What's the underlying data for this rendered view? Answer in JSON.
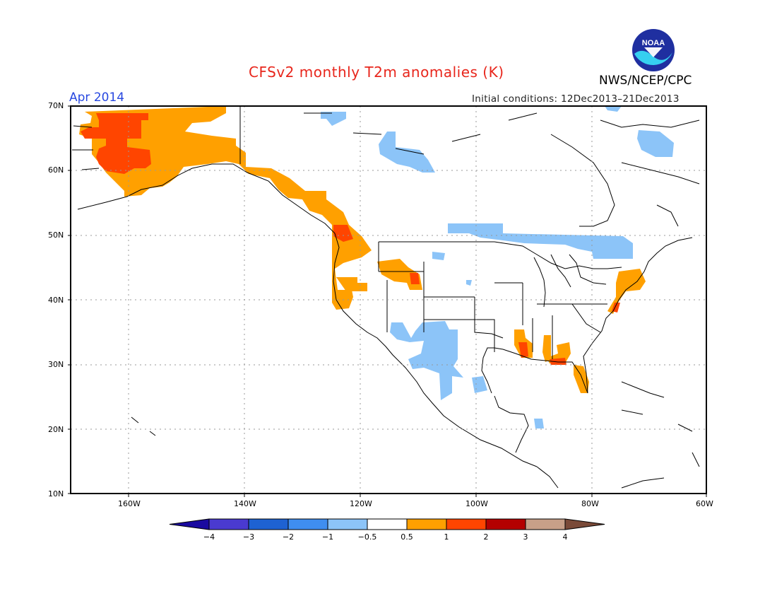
{
  "header": {
    "title": "CFSv2 monthly T2m anomalies (K)",
    "month": "Apr 2014",
    "initial_conditions": "Initial conditions: 12Dec2013–21Dec2013",
    "agency": "NWS/NCEP/CPC",
    "logo_text": "NOAA"
  },
  "axes": {
    "lat_labels": [
      "70N",
      "60N",
      "50N",
      "40N",
      "30N",
      "20N",
      "10N"
    ],
    "lon_labels": [
      "160W",
      "140W",
      "120W",
      "100W",
      "80W",
      "60W"
    ]
  },
  "colorbar": {
    "labels": [
      "−4",
      "−3",
      "−2",
      "−1",
      "−0.5",
      "0.5",
      "1",
      "2",
      "3",
      "4"
    ],
    "colors": [
      "#1a0aa0",
      "#4a3ad0",
      "#1e62d2",
      "#3f8ef0",
      "#8cc4f8",
      "#ffffff",
      "#ffa000",
      "#ff4500",
      "#b40000",
      "#c8a088",
      "#7a4a38"
    ]
  },
  "anomaly_colors": {
    "cool_light": "#8cc4f8",
    "warm_orange": "#ffa000",
    "warm_red": "#ff4500"
  }
}
